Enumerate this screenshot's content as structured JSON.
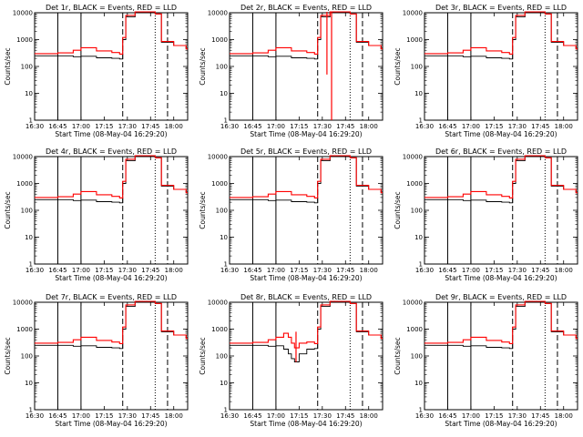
{
  "chart_data": [
    {
      "type": "line",
      "title": "Det 1r, BLACK = Events, RED = LLD",
      "xlabel": "Start Time (08-May-04 16:29:20)",
      "ylabel": "Counts/sec",
      "xlim": [
        "16:30",
        "18:09"
      ],
      "ylim": [
        1,
        10000
      ],
      "yscale": "log",
      "x_ticks": [
        "16:30",
        "16:45",
        "17:00",
        "17:15",
        "17:30",
        "17:45",
        "18:00"
      ],
      "y_ticks": [
        "1",
        "10",
        "100",
        "1000",
        "10000"
      ],
      "x": [
        "16:30",
        "16:40",
        "16:45",
        "16:55",
        "17:00",
        "17:10",
        "17:20",
        "17:25",
        "17:27",
        "17:29",
        "17:35",
        "17:40",
        "17:45",
        "17:48",
        "17:52",
        "18:00",
        "18:08"
      ],
      "series": [
        {
          "name": "Events",
          "color": "#000000",
          "values": [
            250,
            250,
            250,
            230,
            240,
            210,
            200,
            190,
            1000,
            7000,
            12000,
            12000,
            12000,
            9000,
            800,
            600,
            450
          ]
        },
        {
          "name": "LLD",
          "color": "#ff0000",
          "values": [
            300,
            300,
            320,
            400,
            500,
            380,
            330,
            290,
            1200,
            8000,
            12000,
            12000,
            12000,
            9000,
            850,
            600,
            450
          ]
        }
      ],
      "dashed_lines": [
        "17:27",
        "17:56"
      ],
      "dotted_lines": [
        "17:48"
      ],
      "solid_lines": [
        "16:45",
        "17:00"
      ]
    },
    {
      "type": "line",
      "title": "Det 2r, BLACK = Events, RED = LLD",
      "xlabel": "Start Time (08-May-04 16:29:20)",
      "ylabel": "Counts/sec",
      "xlim": [
        "16:30",
        "18:09"
      ],
      "ylim": [
        1,
        10000
      ],
      "yscale": "log",
      "x_ticks": [
        "16:30",
        "16:45",
        "17:00",
        "17:15",
        "17:30",
        "17:45",
        "18:00"
      ],
      "y_ticks": [
        "1",
        "10",
        "100",
        "1000",
        "10000"
      ],
      "x": [
        "16:30",
        "16:40",
        "16:45",
        "16:55",
        "17:00",
        "17:10",
        "17:20",
        "17:25",
        "17:27",
        "17:29",
        "17:35",
        "17:40",
        "17:45",
        "17:48",
        "17:52",
        "18:00",
        "18:08"
      ],
      "series": [
        {
          "name": "Events",
          "color": "#000000",
          "values": [
            250,
            250,
            250,
            230,
            240,
            210,
            200,
            190,
            1000,
            7000,
            12000,
            12000,
            12000,
            9000,
            800,
            600,
            450
          ]
        },
        {
          "name": "LLD",
          "color": "#ff0000",
          "values": [
            300,
            300,
            320,
            400,
            500,
            380,
            330,
            290,
            1200,
            8000,
            12000,
            12000,
            12000,
            9000,
            850,
            600,
            450
          ]
        }
      ],
      "dashed_lines": [
        "17:27",
        "17:56"
      ],
      "dotted_lines": [
        "17:48"
      ],
      "solid_lines": [
        "16:45",
        "17:00"
      ],
      "spikes": [
        {
          "x": "17:33",
          "low": 50,
          "high": 12000
        },
        {
          "x": "17:36",
          "low": 1,
          "high": 12000
        }
      ]
    },
    {
      "type": "line",
      "title": "Det 3r, BLACK = Events, RED = LLD",
      "xlabel": "Start Time (08-May-04 16:29:20)",
      "ylabel": "Counts/sec",
      "xlim": [
        "16:30",
        "18:09"
      ],
      "ylim": [
        1,
        10000
      ],
      "yscale": "log",
      "x_ticks": [
        "16:30",
        "16:45",
        "17:00",
        "17:15",
        "17:30",
        "17:45",
        "18:00"
      ],
      "y_ticks": [
        "1",
        "10",
        "100",
        "1000",
        "10000"
      ],
      "x": [
        "16:30",
        "16:40",
        "16:45",
        "16:55",
        "17:00",
        "17:10",
        "17:20",
        "17:25",
        "17:27",
        "17:29",
        "17:35",
        "17:40",
        "17:45",
        "17:48",
        "17:52",
        "18:00",
        "18:08"
      ],
      "series": [
        {
          "name": "Events",
          "color": "#000000",
          "values": [
            250,
            250,
            250,
            230,
            240,
            210,
            200,
            190,
            1000,
            7000,
            12000,
            12000,
            12000,
            9000,
            800,
            600,
            450
          ]
        },
        {
          "name": "LLD",
          "color": "#ff0000",
          "values": [
            300,
            300,
            320,
            400,
            500,
            380,
            330,
            290,
            1200,
            8000,
            12000,
            12000,
            12000,
            9000,
            850,
            600,
            450
          ]
        }
      ],
      "dashed_lines": [
        "17:27",
        "17:56"
      ],
      "dotted_lines": [
        "17:48"
      ],
      "solid_lines": [
        "16:45",
        "17:00"
      ]
    },
    {
      "type": "line",
      "title": "Det 4r, BLACK = Events, RED = LLD",
      "xlabel": "Start Time (08-May-04 16:29:20)",
      "ylabel": "Counts/sec",
      "xlim": [
        "16:30",
        "18:09"
      ],
      "ylim": [
        1,
        10000
      ],
      "yscale": "log",
      "x_ticks": [
        "16:30",
        "16:45",
        "17:00",
        "17:15",
        "17:30",
        "17:45",
        "18:00"
      ],
      "y_ticks": [
        "1",
        "10",
        "100",
        "1000",
        "10000"
      ],
      "x": [
        "16:30",
        "16:40",
        "16:45",
        "16:55",
        "17:00",
        "17:10",
        "17:20",
        "17:25",
        "17:27",
        "17:29",
        "17:35",
        "17:40",
        "17:45",
        "17:48",
        "17:52",
        "18:00",
        "18:08"
      ],
      "series": [
        {
          "name": "Events",
          "color": "#000000",
          "values": [
            250,
            250,
            250,
            230,
            240,
            210,
            200,
            190,
            1000,
            7000,
            12000,
            12000,
            12000,
            9000,
            800,
            600,
            450
          ]
        },
        {
          "name": "LLD",
          "color": "#ff0000",
          "values": [
            300,
            300,
            320,
            400,
            500,
            380,
            330,
            290,
            1200,
            8000,
            12000,
            12000,
            12000,
            9000,
            850,
            600,
            450
          ]
        }
      ],
      "dashed_lines": [
        "17:27",
        "17:56"
      ],
      "dotted_lines": [
        "17:48"
      ],
      "solid_lines": [
        "16:45",
        "17:00"
      ]
    },
    {
      "type": "line",
      "title": "Det 5r, BLACK = Events, RED = LLD",
      "xlabel": "Start Time (08-May-04 16:29:20)",
      "ylabel": "Counts/sec",
      "xlim": [
        "16:30",
        "18:09"
      ],
      "ylim": [
        1,
        10000
      ],
      "yscale": "log",
      "x_ticks": [
        "16:30",
        "16:45",
        "17:00",
        "17:15",
        "17:30",
        "17:45",
        "18:00"
      ],
      "y_ticks": [
        "1",
        "10",
        "100",
        "1000",
        "10000"
      ],
      "x": [
        "16:30",
        "16:40",
        "16:45",
        "16:55",
        "17:00",
        "17:10",
        "17:20",
        "17:25",
        "17:27",
        "17:29",
        "17:35",
        "17:40",
        "17:45",
        "17:48",
        "17:52",
        "18:00",
        "18:08"
      ],
      "series": [
        {
          "name": "Events",
          "color": "#000000",
          "values": [
            250,
            250,
            250,
            230,
            240,
            210,
            200,
            190,
            1000,
            7000,
            12000,
            12000,
            12000,
            9000,
            800,
            600,
            450
          ]
        },
        {
          "name": "LLD",
          "color": "#ff0000",
          "values": [
            300,
            300,
            320,
            400,
            500,
            380,
            330,
            290,
            1200,
            8000,
            12000,
            12000,
            12000,
            9000,
            850,
            600,
            450
          ]
        }
      ],
      "dashed_lines": [
        "17:27",
        "17:56"
      ],
      "dotted_lines": [
        "17:48"
      ],
      "solid_lines": [
        "16:45",
        "17:00"
      ]
    },
    {
      "type": "line",
      "title": "Det 6r, BLACK = Events, RED = LLD",
      "xlabel": "Start Time (08-May-04 16:29:20)",
      "ylabel": "Counts/sec",
      "xlim": [
        "16:30",
        "18:09"
      ],
      "ylim": [
        1,
        10000
      ],
      "yscale": "log",
      "x_ticks": [
        "16:30",
        "16:45",
        "17:00",
        "17:15",
        "17:30",
        "17:45",
        "18:00"
      ],
      "y_ticks": [
        "1",
        "10",
        "100",
        "1000",
        "10000"
      ],
      "x": [
        "16:30",
        "16:40",
        "16:45",
        "16:55",
        "17:00",
        "17:10",
        "17:20",
        "17:25",
        "17:27",
        "17:29",
        "17:35",
        "17:40",
        "17:45",
        "17:48",
        "17:52",
        "18:00",
        "18:08"
      ],
      "series": [
        {
          "name": "Events",
          "color": "#000000",
          "values": [
            250,
            250,
            250,
            230,
            240,
            210,
            200,
            190,
            1000,
            7000,
            12000,
            12000,
            12000,
            9000,
            800,
            600,
            450
          ]
        },
        {
          "name": "LLD",
          "color": "#ff0000",
          "values": [
            300,
            300,
            320,
            400,
            500,
            380,
            330,
            290,
            1200,
            8000,
            12000,
            12000,
            12000,
            9000,
            850,
            600,
            450
          ]
        }
      ],
      "dashed_lines": [
        "17:27",
        "17:56"
      ],
      "dotted_lines": [
        "17:48"
      ],
      "solid_lines": [
        "16:45",
        "17:00"
      ]
    },
    {
      "type": "line",
      "title": "Det 7r, BLACK = Events, RED = LLD",
      "xlabel": "Start Time (08-May-04 16:29:20)",
      "ylabel": "Counts/sec",
      "xlim": [
        "16:30",
        "18:09"
      ],
      "ylim": [
        1,
        10000
      ],
      "yscale": "log",
      "x_ticks": [
        "16:30",
        "16:45",
        "17:00",
        "17:15",
        "17:30",
        "17:45",
        "18:00"
      ],
      "y_ticks": [
        "1",
        "10",
        "100",
        "1000",
        "10000"
      ],
      "x": [
        "16:30",
        "16:40",
        "16:45",
        "16:55",
        "17:00",
        "17:10",
        "17:20",
        "17:25",
        "17:27",
        "17:29",
        "17:35",
        "17:40",
        "17:45",
        "17:48",
        "17:52",
        "18:00",
        "18:08"
      ],
      "series": [
        {
          "name": "Events",
          "color": "#000000",
          "values": [
            250,
            250,
            250,
            230,
            240,
            210,
            200,
            190,
            1000,
            7000,
            12000,
            12000,
            12000,
            9000,
            800,
            600,
            450
          ]
        },
        {
          "name": "LLD",
          "color": "#ff0000",
          "values": [
            300,
            300,
            320,
            400,
            500,
            380,
            330,
            290,
            1200,
            8000,
            12000,
            12000,
            12000,
            9000,
            850,
            600,
            450
          ]
        }
      ],
      "dashed_lines": [
        "17:27",
        "17:56"
      ],
      "dotted_lines": [
        "17:48"
      ],
      "solid_lines": [
        "16:45",
        "17:00"
      ]
    },
    {
      "type": "line",
      "title": "Det 8r, BLACK = Events, RED = LLD",
      "xlabel": "Start Time (08-May-04 16:29:20)",
      "ylabel": "Counts/sec",
      "xlim": [
        "16:30",
        "18:09"
      ],
      "ylim": [
        1,
        10000
      ],
      "yscale": "log",
      "x_ticks": [
        "16:30",
        "16:45",
        "17:00",
        "17:15",
        "17:30",
        "17:45",
        "18:00"
      ],
      "y_ticks": [
        "1",
        "10",
        "100",
        "1000",
        "10000"
      ],
      "x": [
        "16:30",
        "16:40",
        "16:45",
        "16:55",
        "17:00",
        "17:05",
        "17:08",
        "17:10",
        "17:12",
        "17:15",
        "17:20",
        "17:25",
        "17:27",
        "17:29",
        "17:35",
        "17:40",
        "17:45",
        "17:48",
        "17:52",
        "18:00",
        "18:08"
      ],
      "series": [
        {
          "name": "Events",
          "color": "#000000",
          "values": [
            250,
            250,
            250,
            230,
            240,
            180,
            120,
            80,
            60,
            120,
            180,
            190,
            1000,
            7000,
            12000,
            12000,
            12000,
            9000,
            800,
            600,
            450
          ]
        },
        {
          "name": "LLD",
          "color": "#ff0000",
          "values": [
            300,
            300,
            320,
            400,
            500,
            700,
            500,
            300,
            200,
            300,
            330,
            290,
            1200,
            8000,
            12000,
            12000,
            12000,
            9000,
            850,
            600,
            450
          ]
        }
      ],
      "dashed_lines": [
        "17:27",
        "17:56"
      ],
      "dotted_lines": [
        "17:48"
      ],
      "solid_lines": [
        "16:45",
        "17:00"
      ],
      "spikes": [
        {
          "x": "17:13",
          "low": 60,
          "high": 800
        }
      ]
    },
    {
      "type": "line",
      "title": "Det 9r, BLACK = Events, RED = LLD",
      "xlabel": "Start Time (08-May-04 16:29:20)",
      "ylabel": "Counts/sec",
      "xlim": [
        "16:30",
        "18:09"
      ],
      "ylim": [
        1,
        10000
      ],
      "yscale": "log",
      "x_ticks": [
        "16:30",
        "16:45",
        "17:00",
        "17:15",
        "17:30",
        "17:45",
        "18:00"
      ],
      "y_ticks": [
        "1",
        "10",
        "100",
        "1000",
        "10000"
      ],
      "x": [
        "16:30",
        "16:40",
        "16:45",
        "16:55",
        "17:00",
        "17:10",
        "17:20",
        "17:25",
        "17:27",
        "17:29",
        "17:35",
        "17:40",
        "17:45",
        "17:48",
        "17:52",
        "18:00",
        "18:08"
      ],
      "series": [
        {
          "name": "Events",
          "color": "#000000",
          "values": [
            250,
            250,
            250,
            230,
            240,
            210,
            200,
            190,
            1000,
            7000,
            12000,
            12000,
            12000,
            9000,
            800,
            600,
            450
          ]
        },
        {
          "name": "LLD",
          "color": "#ff0000",
          "values": [
            300,
            300,
            320,
            400,
            500,
            380,
            330,
            290,
            1200,
            8000,
            12000,
            12000,
            12000,
            9000,
            850,
            600,
            450
          ]
        }
      ],
      "dashed_lines": [
        "17:27",
        "17:56"
      ],
      "dotted_lines": [
        "17:48"
      ],
      "solid_lines": [
        "16:45",
        "17:00"
      ]
    }
  ]
}
